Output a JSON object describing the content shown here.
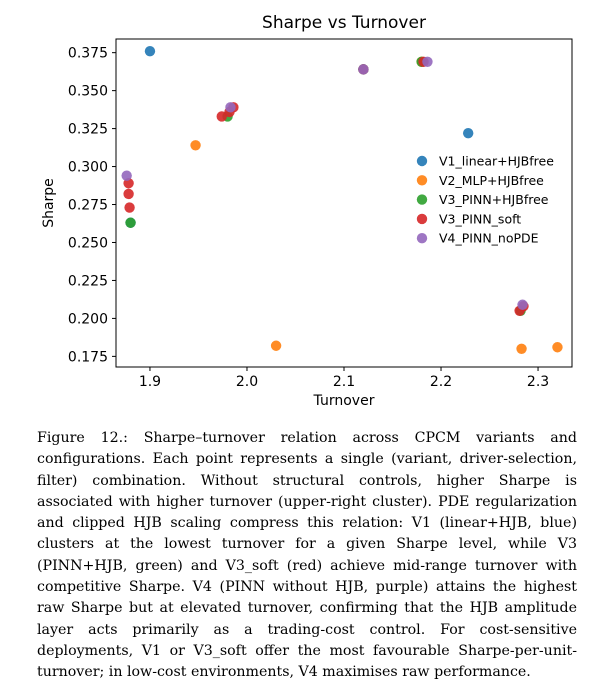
{
  "chart_data": {
    "type": "scatter",
    "title": "Sharpe vs Turnover",
    "xlabel": "Turnover",
    "ylabel": "Sharpe",
    "xlim": [
      1.865,
      2.335
    ],
    "ylim": [
      0.168,
      0.384
    ],
    "xticks": [
      "1.9",
      "2.0",
      "2.1",
      "2.2",
      "2.3"
    ],
    "xtick_values": [
      1.9,
      2.0,
      2.1,
      2.2,
      2.3
    ],
    "yticks": [
      "0.175",
      "0.200",
      "0.225",
      "0.250",
      "0.275",
      "0.300",
      "0.325",
      "0.350",
      "0.375"
    ],
    "ytick_values": [
      0.175,
      0.2,
      0.225,
      0.25,
      0.275,
      0.3,
      0.325,
      0.35,
      0.375
    ],
    "grid": false,
    "legend_position": "right",
    "series": [
      {
        "name": "V1_linear+HJBfree",
        "color": "#1f77b4",
        "points": [
          [
            1.9,
            0.376
          ],
          [
            2.12,
            0.364
          ],
          [
            2.228,
            0.322
          ],
          [
            1.88,
            0.263
          ]
        ]
      },
      {
        "name": "V2_MLP+HJBfree",
        "color": "#ff7f0e",
        "points": [
          [
            1.947,
            0.314
          ],
          [
            2.03,
            0.182
          ],
          [
            2.283,
            0.18
          ],
          [
            2.32,
            0.181
          ],
          [
            2.18,
            0.369
          ]
        ]
      },
      {
        "name": "V3_PINN+HJBfree",
        "color": "#2ca02c",
        "points": [
          [
            1.98,
            0.333
          ],
          [
            2.12,
            0.364
          ],
          [
            2.18,
            0.369
          ],
          [
            2.282,
            0.205
          ],
          [
            1.88,
            0.263
          ]
        ]
      },
      {
        "name": "V3_PINN_soft",
        "color": "#d62728",
        "points": [
          [
            1.878,
            0.289
          ],
          [
            1.878,
            0.282
          ],
          [
            1.879,
            0.273
          ],
          [
            1.974,
            0.333
          ],
          [
            1.982,
            0.336
          ],
          [
            1.986,
            0.339
          ],
          [
            2.12,
            0.364
          ],
          [
            2.182,
            0.369
          ],
          [
            2.281,
            0.205
          ],
          [
            2.285,
            0.208
          ]
        ]
      },
      {
        "name": "V4_PINN_noPDE",
        "color": "#9467bd",
        "points": [
          [
            1.876,
            0.294
          ],
          [
            1.983,
            0.339
          ],
          [
            2.12,
            0.364
          ],
          [
            2.186,
            0.369
          ],
          [
            2.284,
            0.209
          ]
        ]
      }
    ]
  },
  "caption": "Figure 12.: Sharpe–turnover relation across CPCM variants and configurations. Each point represents a single (variant, driver-selection, filter) combination. Without structural controls, higher Sharpe is associated with higher turnover (upper-right cluster). PDE regularization and clipped HJB scaling compress this relation: V1 (linear+HJB, blue) clusters at the lowest turnover for a given Sharpe level, while V3 (PINN+HJB, green) and V3_soft (red) achieve mid-range turnover with competitive Sharpe. V4 (PINN without HJB, purple) attains the highest raw Sharpe but at elevated turnover, confirming that the HJB amplitude layer acts primarily as a trading-cost control. For cost-sensitive deployments, V1 or V3_soft offer the most favourable Sharpe-per-unit-turnover; in low-cost environments, V4 maximises raw performance."
}
